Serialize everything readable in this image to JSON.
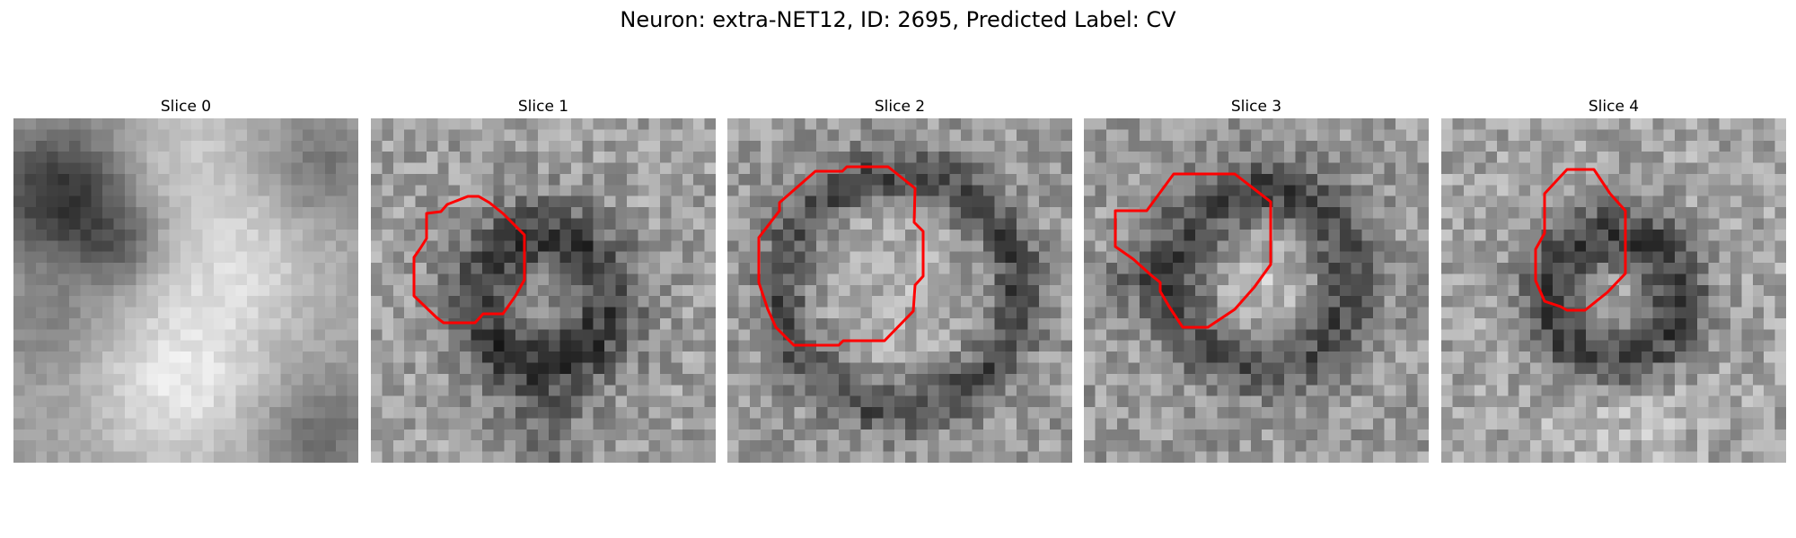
{
  "figure": {
    "title": "Neuron: extra-NET12, ID: 2695, Predicted Label: CV"
  },
  "colors": {
    "contour": "#ff0000",
    "background": "#ffffff"
  },
  "panels": [
    {
      "title": "Slice 0",
      "image": "grayscale-em-patch-slice-0",
      "has_contour": false
    },
    {
      "title": "Slice 1",
      "image": "grayscale-em-patch-slice-1",
      "has_contour": true
    },
    {
      "title": "Slice 2",
      "image": "grayscale-em-patch-slice-2",
      "has_contour": true
    },
    {
      "title": "Slice 3",
      "image": "grayscale-em-patch-slice-3",
      "has_contour": true
    },
    {
      "title": "Slice 4",
      "image": "grayscale-em-patch-slice-4",
      "has_contour": true
    }
  ]
}
